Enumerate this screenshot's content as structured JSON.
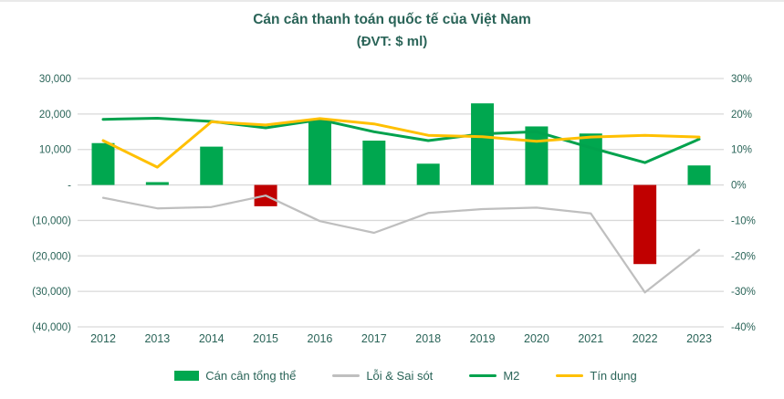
{
  "title": "Cán cân thanh toán quốc tế của Việt Nam",
  "subtitle": "(ĐVT: $ ml)",
  "colors": {
    "bar_positive": "#00A74F",
    "bar_negative": "#C00000",
    "line_errors": "#BFBFBF",
    "line_m2": "#00A24D",
    "line_credit": "#FFC000",
    "gridline": "#D9D9D9",
    "text": "#2a6458"
  },
  "chart_data": {
    "type": "combo-bar-line",
    "title": "Cán cân thanh toán quốc tế của Việt Nam",
    "subtitle": "(ĐVT: $ ml)",
    "categories": [
      "2012",
      "2013",
      "2014",
      "2015",
      "2016",
      "2017",
      "2018",
      "2019",
      "2020",
      "2021",
      "2022",
      "2023"
    ],
    "series": [
      {
        "name": "Cán cân tổng thể",
        "type": "bar",
        "axis": "left",
        "unit": "$ million",
        "values": [
          11800,
          800,
          10800,
          -6000,
          18100,
          12500,
          6000,
          23000,
          16500,
          14500,
          -22300,
          5500
        ]
      },
      {
        "name": "Lỗi & Sai sót",
        "type": "line",
        "axis": "left",
        "unit": "$ million",
        "values": [
          -3600,
          -6600,
          -6200,
          -3000,
          -10200,
          -13500,
          -7900,
          -6800,
          -6400,
          -8000,
          -30300,
          -18300
        ]
      },
      {
        "name": "M2",
        "type": "line",
        "axis": "right",
        "unit": "%",
        "values": [
          18.5,
          18.8,
          17.9,
          16.1,
          18.4,
          15.0,
          12.5,
          14.4,
          15.0,
          10.5,
          6.3,
          12.9
        ]
      },
      {
        "name": "Tín dụng",
        "type": "line",
        "axis": "right",
        "unit": "%",
        "values": [
          12.5,
          5.0,
          17.8,
          16.9,
          18.7,
          17.2,
          14.0,
          13.6,
          12.3,
          13.5,
          14.0,
          13.5
        ]
      }
    ],
    "left_axis": {
      "ticks": [
        "30,000",
        "20,000",
        "10,000",
        "-",
        "(10,000)",
        "(20,000)",
        "(30,000)",
        "(40,000)"
      ],
      "values": [
        30000,
        20000,
        10000,
        0,
        -10000,
        -20000,
        -30000,
        -40000
      ],
      "range": [
        -40000,
        30000
      ]
    },
    "right_axis": {
      "ticks": [
        "30%",
        "20%",
        "10%",
        "0%",
        "-10%",
        "-20%",
        "-30%",
        "-40%"
      ],
      "values": [
        30,
        20,
        10,
        0,
        -10,
        -20,
        -30,
        -40
      ],
      "range": [
        -40,
        30
      ]
    },
    "grid": true,
    "legend_position": "bottom"
  },
  "legend": {
    "items": [
      {
        "label": "Cán cân tổng thể",
        "marker": "bar",
        "color_key": "bar_positive"
      },
      {
        "label": "Lỗi & Sai sót",
        "marker": "line",
        "color_key": "line_errors"
      },
      {
        "label": "M2",
        "marker": "line",
        "color_key": "line_m2"
      },
      {
        "label": "Tín dụng",
        "marker": "line",
        "color_key": "line_credit"
      }
    ]
  }
}
